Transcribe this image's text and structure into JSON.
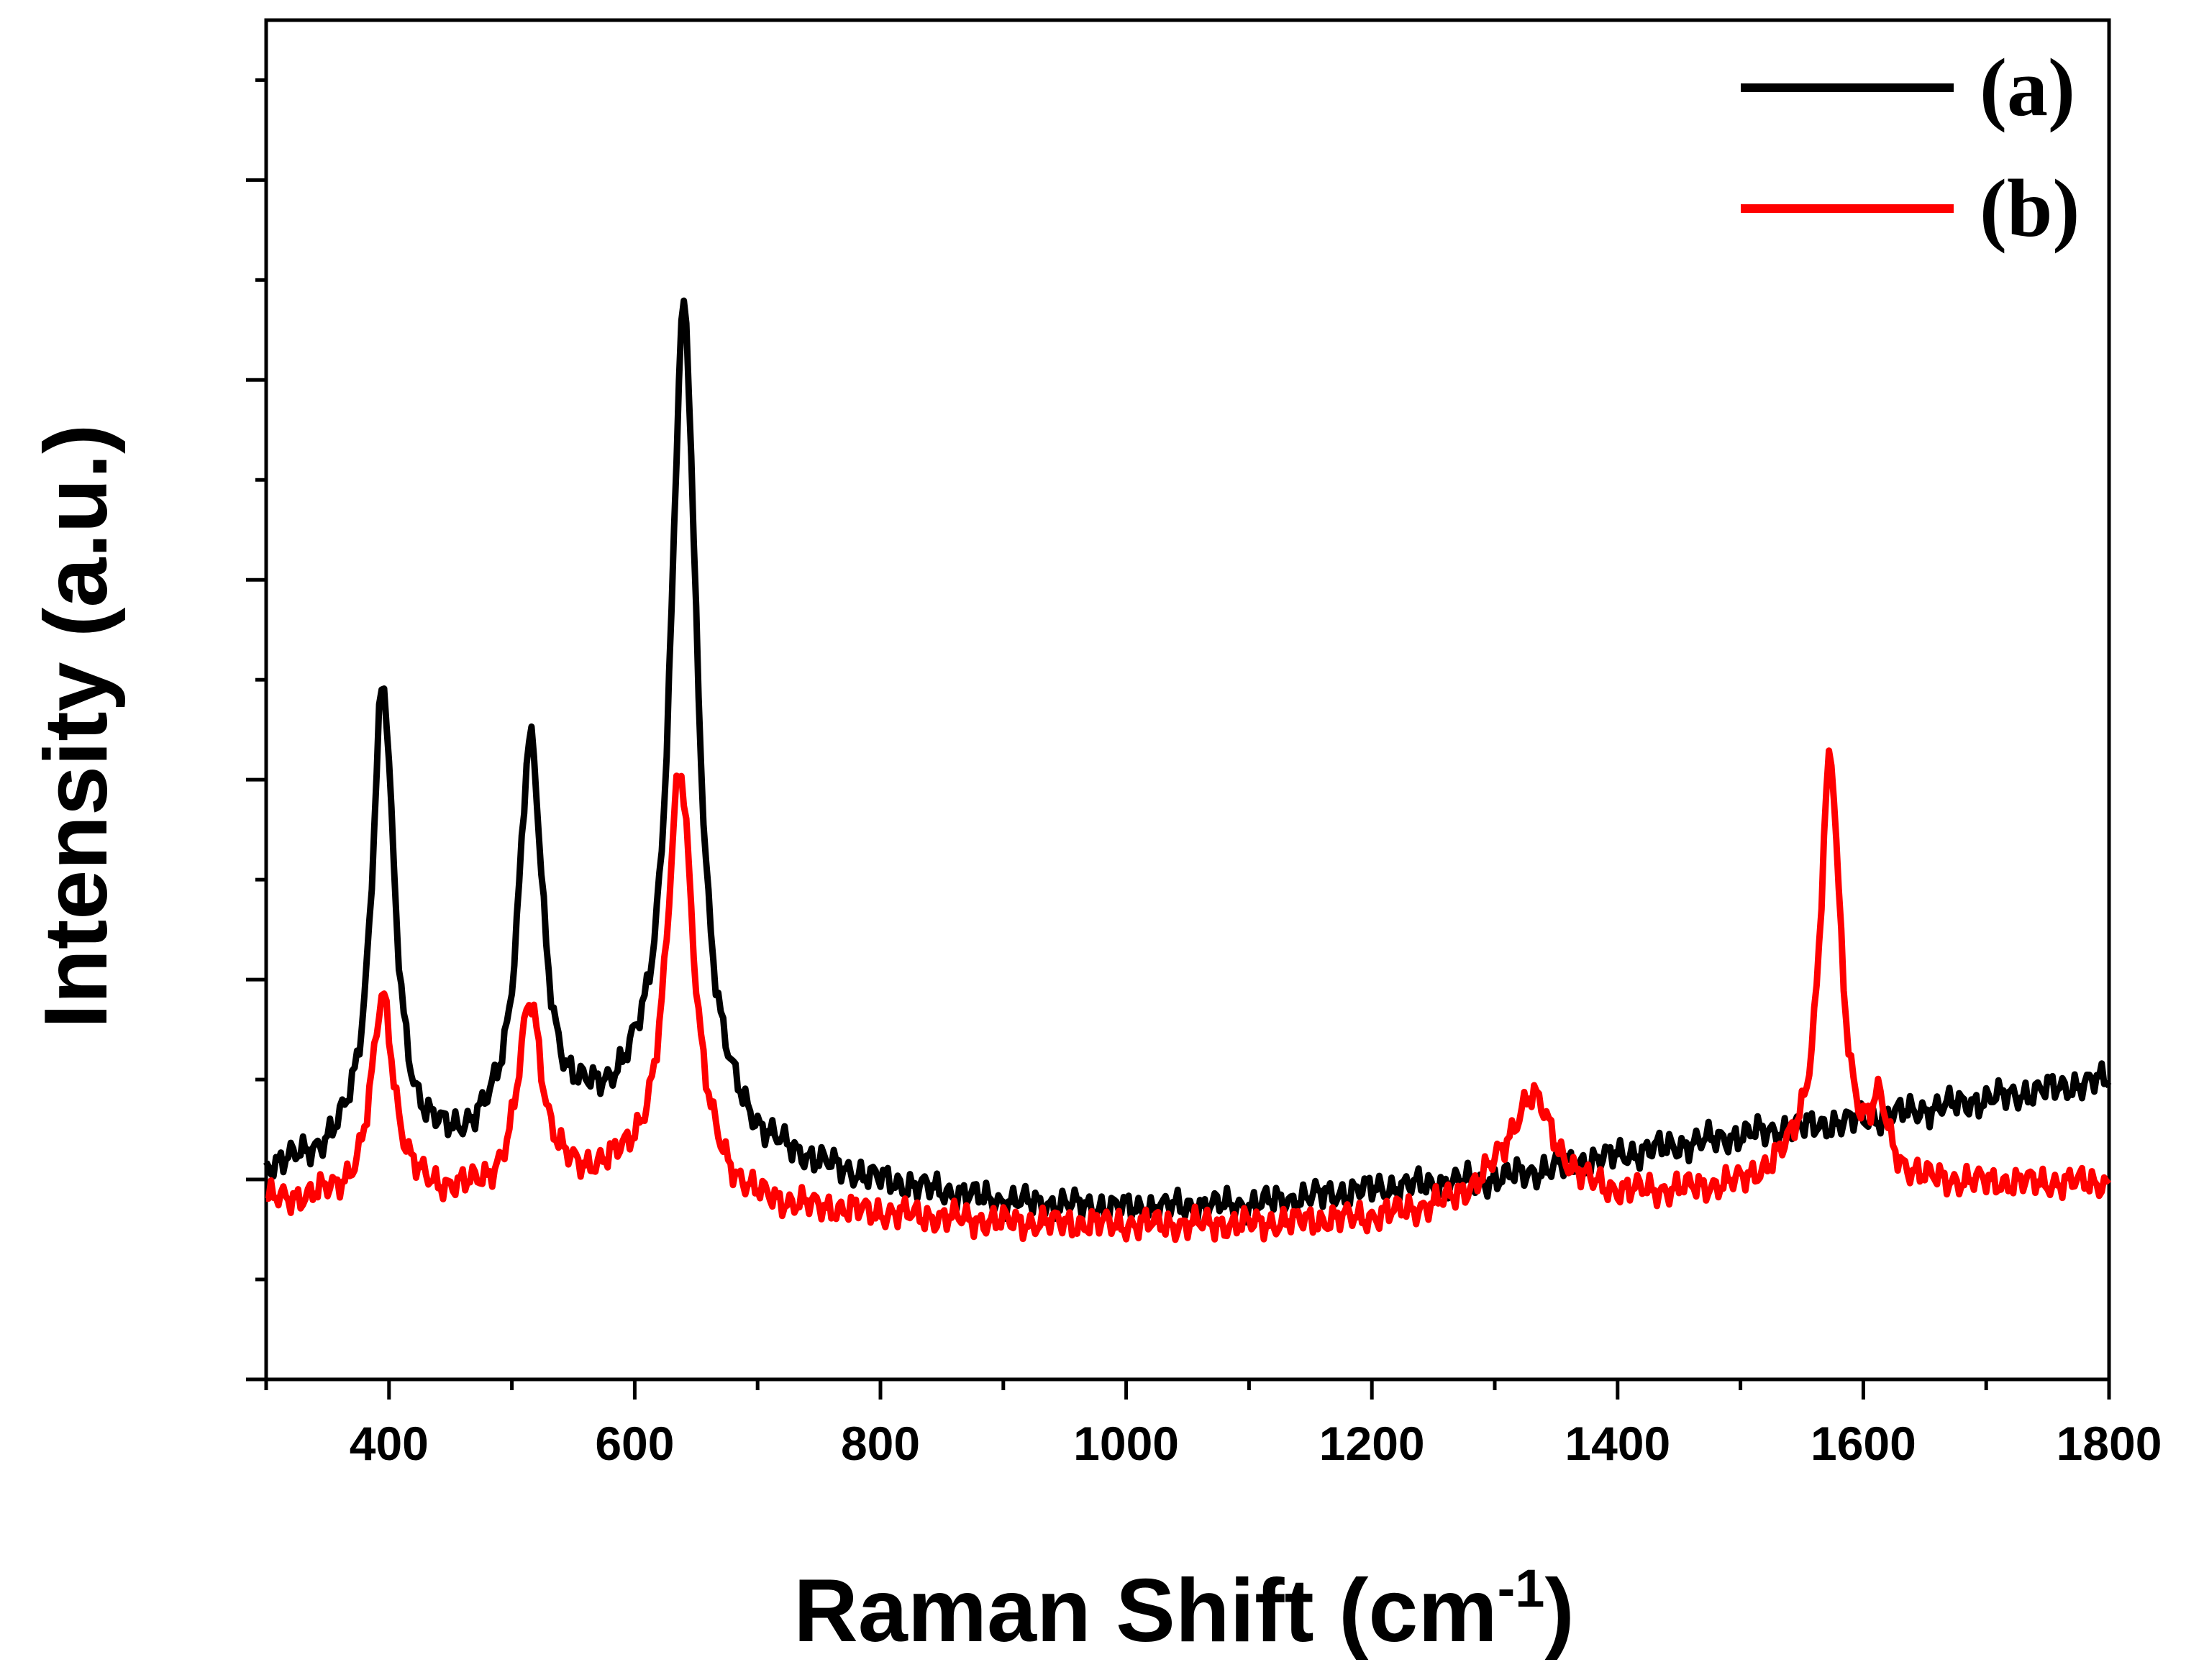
{
  "chart_data": {
    "type": "line",
    "title": "",
    "xlabel": "Raman Shift (cm",
    "xlabel_superscript": "-1",
    "xlabel_suffix": ")",
    "ylabel": "Intensity (a.u.)",
    "xlim": [
      300,
      1800
    ],
    "ylim": [
      -0.5,
      6.3
    ],
    "x_ticks": [
      400,
      600,
      800,
      1000,
      1200,
      1400,
      1600,
      1800
    ],
    "x_minor_ticks": [
      300,
      500,
      700,
      900,
      1100,
      1300,
      1500,
      1700
    ],
    "y_tick_labels_shown": false,
    "grid": false,
    "legend_position": "top-right",
    "series": [
      {
        "name": "(a)",
        "color": "#000000",
        "baseline": [
          [
            300,
            0.53
          ],
          [
            360,
            0.58
          ],
          [
            450,
            0.6
          ],
          [
            560,
            0.75
          ],
          [
            600,
            0.8
          ],
          [
            700,
            0.6
          ],
          [
            800,
            0.47
          ],
          [
            900,
            0.38
          ],
          [
            1000,
            0.35
          ],
          [
            1100,
            0.37
          ],
          [
            1200,
            0.45
          ],
          [
            1300,
            0.5
          ],
          [
            1400,
            0.62
          ],
          [
            1500,
            0.72
          ],
          [
            1600,
            0.8
          ],
          [
            1700,
            0.9
          ],
          [
            1800,
            1.0
          ]
        ],
        "peaks": [
          {
            "center": 395,
            "height": 2.35,
            "width": 11
          },
          {
            "center": 515,
            "height": 1.95,
            "width": 12
          },
          {
            "center": 640,
            "height": 4.1,
            "width": 13
          }
        ]
      },
      {
        "name": "(b)",
        "color": "#ff0000",
        "baseline": [
          [
            300,
            0.38
          ],
          [
            400,
            0.4
          ],
          [
            500,
            0.4
          ],
          [
            600,
            0.5
          ],
          [
            700,
            0.35
          ],
          [
            800,
            0.32
          ],
          [
            900,
            0.28
          ],
          [
            1000,
            0.27
          ],
          [
            1100,
            0.27
          ],
          [
            1200,
            0.3
          ],
          [
            1260,
            0.35
          ],
          [
            1300,
            0.42
          ],
          [
            1400,
            0.4
          ],
          [
            1500,
            0.45
          ],
          [
            1550,
            0.55
          ],
          [
            1650,
            0.47
          ],
          [
            1800,
            0.48
          ]
        ],
        "peaks": [
          {
            "center": 395,
            "height": 1.0,
            "width": 11
          },
          {
            "center": 515,
            "height": 0.95,
            "width": 12
          },
          {
            "center": 637,
            "height": 2.1,
            "width": 13
          },
          {
            "center": 1330,
            "height": 0.5,
            "width": 22
          },
          {
            "center": 1573,
            "height": 2.05,
            "width": 10
          },
          {
            "center": 1613,
            "height": 0.3,
            "width": 8
          }
        ]
      }
    ]
  }
}
